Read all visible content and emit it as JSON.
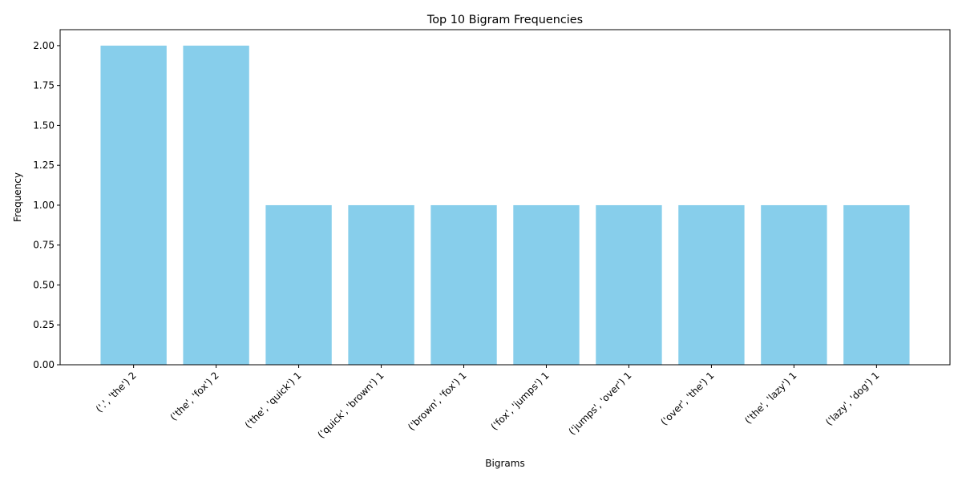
{
  "chart_data": {
    "type": "bar",
    "title": "Top 10 Bigram Frequencies",
    "xlabel": "Bigrams",
    "ylabel": "Frequency",
    "ylim": [
      0,
      2.1
    ],
    "yticks": [
      "0.00",
      "0.25",
      "0.50",
      "0.75",
      "1.00",
      "1.25",
      "1.50",
      "1.75",
      "2.00"
    ],
    "ytick_values": [
      0,
      0.25,
      0.5,
      0.75,
      1.0,
      1.25,
      1.5,
      1.75,
      2.0
    ],
    "categories": [
      "('.', 'the') 2",
      "('the', 'fox') 2",
      "('the', 'quick') 1",
      "('quick', 'brown') 1",
      "('brown', 'fox') 1",
      "('fox', 'jumps') 1",
      "('jumps', 'over') 1",
      "('over', 'the') 1",
      "('the', 'lazy') 1",
      "('lazy', 'dog') 1"
    ],
    "values": [
      2,
      2,
      1,
      1,
      1,
      1,
      1,
      1,
      1,
      1
    ],
    "bar_color": "#87ceeb",
    "grid": false,
    "legend": "none"
  }
}
